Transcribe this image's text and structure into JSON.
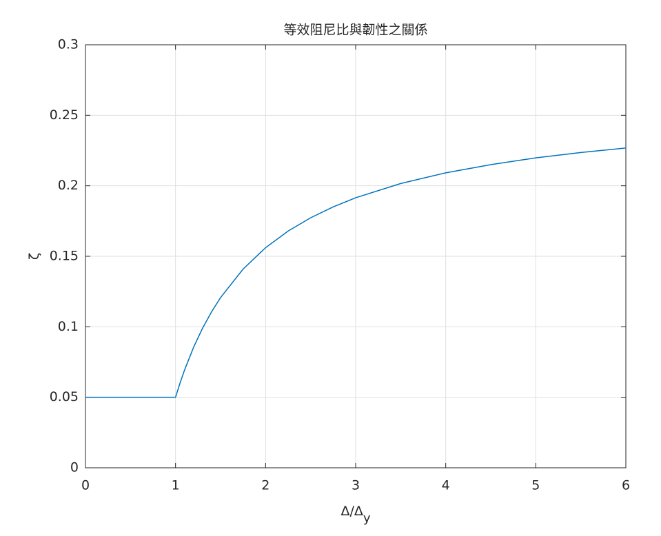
{
  "chart_data": {
    "type": "line",
    "title": "等效阻尼比與韌性之關係",
    "xlabel": "Δ/Δ",
    "xlabel_subscript": "y",
    "ylabel": "ζ",
    "x": [
      0,
      0.5,
      1,
      1.05,
      1.1,
      1.2,
      1.3,
      1.4,
      1.5,
      1.75,
      2,
      2.25,
      2.5,
      2.75,
      3,
      3.5,
      4,
      4.5,
      5,
      5.5,
      6
    ],
    "series": [
      {
        "color": "#0072bd",
        "values": [
          0.05,
          0.05,
          0.05,
          0.0601,
          0.0693,
          0.0854,
          0.099,
          0.1106,
          0.1207,
          0.1409,
          0.1561,
          0.1679,
          0.1773,
          0.185,
          0.1915,
          0.2016,
          0.2092,
          0.215,
          0.2198,
          0.2236,
          0.2268
        ]
      }
    ],
    "xlim": [
      0,
      6
    ],
    "xticks": [
      0,
      1,
      2,
      3,
      4,
      5,
      6
    ],
    "ylim": [
      0,
      0.3
    ],
    "yticks": [
      0,
      0.05,
      0.1,
      0.15,
      0.2,
      0.25,
      0.3
    ],
    "grid": true
  }
}
